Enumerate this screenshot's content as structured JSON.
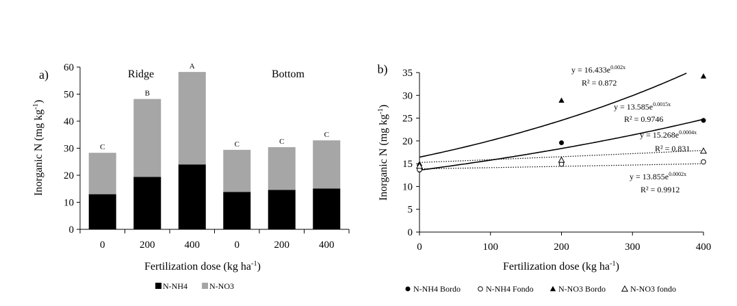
{
  "chart_data": [
    {
      "panel_label": "a)",
      "type": "bar",
      "stacked": true,
      "group_labels": [
        "Ridge",
        "Bottom"
      ],
      "categories": [
        "0",
        "200",
        "400",
        "0",
        "200",
        "400"
      ],
      "series": [
        {
          "name": "N-NH4",
          "color": "#000000",
          "values": [
            13.0,
            19.4,
            24.0,
            13.8,
            14.6,
            15.1
          ]
        },
        {
          "name": "N-NO3",
          "color": "#a6a6a6",
          "values": [
            15.3,
            28.8,
            34.2,
            15.6,
            15.8,
            17.8
          ]
        }
      ],
      "letters": [
        "C",
        "B",
        "A",
        "C",
        "C",
        "C"
      ],
      "ylim": [
        0,
        60
      ],
      "yticks": [
        "0",
        "10",
        "20",
        "30",
        "40",
        "50",
        "60"
      ],
      "ylabel": "Inorganic N (mg kg",
      "ylabel_sup": "-1",
      "ylabel_end": ")",
      "xlabel": "Fertilization dose (kg ha",
      "xlabel_sup": "-1",
      "xlabel_end": ")",
      "legend": [
        "N-NH4",
        "N-NO3"
      ]
    },
    {
      "panel_label": "b)",
      "type": "scatter",
      "x": [
        0,
        200,
        400
      ],
      "series": [
        {
          "name": "N-NH4 Bordo",
          "marker": "filled-circle",
          "values": [
            13.6,
            19.6,
            24.5
          ]
        },
        {
          "name": "N-NH4 Fondo",
          "marker": "open-circle",
          "values": [
            13.7,
            14.9,
            15.4
          ]
        },
        {
          "name": "N-NO3 Bordo",
          "marker": "filled-triangle",
          "values": [
            15.0,
            28.9,
            34.2
          ]
        },
        {
          "name": "N-NO3 fondo",
          "marker": "open-triangle",
          "values": [
            14.5,
            15.8,
            17.8
          ]
        }
      ],
      "trendlines": [
        {
          "a": 16.433,
          "b": 0.002,
          "style": "solid",
          "eq": "y = 16.433e",
          "exp": "0.002x",
          "r2": "R² = 0.872"
        },
        {
          "a": 13.585,
          "b": 0.0015,
          "style": "solid",
          "eq": "y = 13.585e",
          "exp": "0.0015x",
          "r2": "R² = 0.9746"
        },
        {
          "a": 15.268,
          "b": 0.0004,
          "style": "dotted",
          "eq": "y = 15.268e",
          "exp": "0.0004x",
          "r2": "R² = 0.831"
        },
        {
          "a": 13.855,
          "b": 0.0002,
          "style": "dotted",
          "eq": "y = 13.855e",
          "exp": "0.0002x",
          "r2": "R² = 0.9912"
        }
      ],
      "xlim": [
        0,
        400
      ],
      "ylim": [
        0,
        35
      ],
      "xticks": [
        "0",
        "100",
        "200",
        "300",
        "400"
      ],
      "yticks": [
        "0",
        "5",
        "10",
        "15",
        "20",
        "25",
        "30",
        "35"
      ],
      "ylabel": "Inorganic N (mg kg",
      "ylabel_sup": "-1",
      "ylabel_end": ")",
      "xlabel": "Fertilization dose (kg ha",
      "xlabel_sup": "-1",
      "xlabel_end": ")",
      "legend": [
        "N-NH4 Bordo",
        "N-NH4 Fondo",
        "N-NO3 Bordo",
        "N-NO3 fondo"
      ]
    }
  ]
}
